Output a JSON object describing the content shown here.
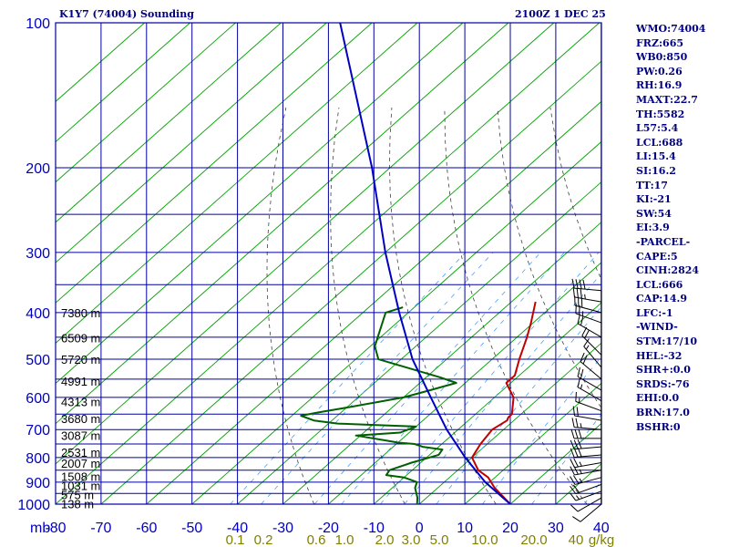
{
  "header": {
    "station": "K1Y7 (74004) Sounding",
    "time": "2100Z  1 DEC 25"
  },
  "stats": [
    "WMO:74004",
    "FRZ:665",
    "WB0:850",
    "PW:0.26",
    "RH:16.9",
    "MAXT:22.7",
    "TH:5582",
    "L57:5.4",
    "LCL:688",
    "LI:15.4",
    "SI:16.2",
    "TT:17",
    "KI:-21",
    "SW:54",
    "EI:3.9",
    "-PARCEL-",
    "CAPE:5",
    "CINH:2824",
    "LCL:666",
    "CAP:14.9",
    "LFC:-1",
    "-WIND-",
    "STM:17/10",
    "HEL:-32",
    "SHR+:0.0",
    "SRDS:-76",
    "EHI:0.0",
    "BRN:17.0",
    "BSHR:0"
  ],
  "colors": {
    "grid": "#0000a0",
    "skewed_isotherm": "#00a000",
    "dry_adiabat": "#404040",
    "mixing_ratio": "#4aa0ff",
    "temperature": "#c00000",
    "dewpoint": "#006000",
    "parcel": "#0000c0",
    "labels": "#0000c0",
    "mixing_ratio_labels": "#808000"
  },
  "chart_data": {
    "type": "line",
    "title": "K1Y7 (74004) Sounding",
    "y_scale": "log-pressure",
    "ylim": [
      1000,
      100
    ],
    "xlim": [
      -80,
      40
    ],
    "pressure_ticks": [
      100,
      200,
      300,
      400,
      500,
      600,
      700,
      800,
      900,
      1000
    ],
    "pressure_tick_labels": [
      "100",
      "200",
      "300",
      "400",
      "500",
      "600",
      "700",
      "800",
      "900",
      "1000"
    ],
    "pressure_unit_label": "mb",
    "temperature_ticks": [
      -80,
      -70,
      -60,
      -50,
      -40,
      -30,
      -20,
      -10,
      0,
      10,
      20,
      30,
      40
    ],
    "temperature_tick_labels": [
      "-80",
      "-70",
      "-60",
      "-50",
      "-40",
      "-30",
      "-20",
      "-10",
      "0",
      "10",
      "20",
      "30",
      "40"
    ],
    "mixing_ratio_labels": [
      "0.1",
      "0.2",
      "0.6",
      "1.0",
      "2.0",
      "3.0",
      "5.0",
      "10.0",
      "20.0",
      "40",
      "g/kg"
    ],
    "height_labels": [
      {
        "p": 400,
        "text": "7380 m"
      },
      {
        "p": 451,
        "text": "6509 m"
      },
      {
        "p": 500,
        "text": "5720 m"
      },
      {
        "p": 555,
        "text": "4991 m"
      },
      {
        "p": 612,
        "text": "4313 m"
      },
      {
        "p": 663,
        "text": "3680 m"
      },
      {
        "p": 720,
        "text": "3087 m"
      },
      {
        "p": 780,
        "text": "2531 m"
      },
      {
        "p": 822,
        "text": "2007 m"
      },
      {
        "p": 875,
        "text": "1508 m"
      },
      {
        "p": 915,
        "text": "1031 m"
      },
      {
        "p": 955,
        "text": "575 m"
      },
      {
        "p": 998,
        "text": "138 m"
      }
    ],
    "series": [
      {
        "key": "temperature",
        "points": [
          {
            "p": 1000,
            "t": 20.0
          },
          {
            "p": 925,
            "t": 12.5
          },
          {
            "p": 880,
            "t": 8.5
          },
          {
            "p": 850,
            "t": 4.5
          },
          {
            "p": 800,
            "t": 0.0
          },
          {
            "p": 750,
            "t": -1.5
          },
          {
            "p": 700,
            "t": -2.5
          },
          {
            "p": 670,
            "t": -1.5
          },
          {
            "p": 660,
            "t": -2.0
          },
          {
            "p": 650,
            "t": -2.0
          },
          {
            "p": 600,
            "t": -5.8
          },
          {
            "p": 560,
            "t": -11.0
          },
          {
            "p": 540,
            "t": -11.0
          },
          {
            "p": 500,
            "t": -14.0
          },
          {
            "p": 450,
            "t": -17.8
          },
          {
            "p": 420,
            "t": -20.5
          },
          {
            "p": 380,
            "t": -24.7
          }
        ]
      },
      {
        "key": "dewpoint",
        "points": [
          {
            "p": 1000,
            "t": -0.5
          },
          {
            "p": 970,
            "t": -2.0
          },
          {
            "p": 925,
            "t": -5.0
          },
          {
            "p": 900,
            "t": -6.0
          },
          {
            "p": 880,
            "t": -10.0
          },
          {
            "p": 870,
            "t": -14.5
          },
          {
            "p": 850,
            "t": -15.0
          },
          {
            "p": 820,
            "t": -12.0
          },
          {
            "p": 790,
            "t": -8.0
          },
          {
            "p": 770,
            "t": -8.5
          },
          {
            "p": 760,
            "t": -13.5
          },
          {
            "p": 750,
            "t": -16.0
          },
          {
            "p": 745,
            "t": -20.0
          },
          {
            "p": 740,
            "t": -22.0
          },
          {
            "p": 720,
            "t": -31.0
          },
          {
            "p": 710,
            "t": -22.0
          },
          {
            "p": 690,
            "t": -20.0
          },
          {
            "p": 680,
            "t": -38.0
          },
          {
            "p": 670,
            "t": -44.0
          },
          {
            "p": 655,
            "t": -48.0
          },
          {
            "p": 645,
            "t": -45.0
          },
          {
            "p": 630,
            "t": -40.0
          },
          {
            "p": 600,
            "t": -30.0
          },
          {
            "p": 580,
            "t": -26.0
          },
          {
            "p": 560,
            "t": -22.0
          },
          {
            "p": 545,
            "t": -27.0
          },
          {
            "p": 500,
            "t": -45.0
          },
          {
            "p": 470,
            "t": -49.0
          },
          {
            "p": 400,
            "t": -55.0
          },
          {
            "p": 390,
            "t": -52.5
          }
        ]
      },
      {
        "key": "parcel",
        "points": [
          {
            "p": 1000,
            "t": 20.0
          },
          {
            "p": 900,
            "t": 9.0
          },
          {
            "p": 800,
            "t": -1.5
          },
          {
            "p": 700,
            "t": -12.5
          },
          {
            "p": 600,
            "t": -24.0
          },
          {
            "p": 500,
            "t": -37.5
          },
          {
            "p": 400,
            "t": -52.0
          },
          {
            "p": 300,
            "t": -70.0
          },
          {
            "p": 200,
            "t": -94.0
          },
          {
            "p": 100,
            "t": -137.0
          }
        ]
      }
    ],
    "wind_barbs": [
      {
        "p": 1000,
        "dir": 230,
        "spd": 10
      },
      {
        "p": 970,
        "dir": 240,
        "spd": 10
      },
      {
        "p": 940,
        "dir": 250,
        "spd": 15
      },
      {
        "p": 910,
        "dir": 250,
        "spd": 20
      },
      {
        "p": 880,
        "dir": 255,
        "spd": 25
      },
      {
        "p": 850,
        "dir": 260,
        "spd": 25
      },
      {
        "p": 820,
        "dir": 260,
        "spd": 25
      },
      {
        "p": 790,
        "dir": 265,
        "spd": 30
      },
      {
        "p": 760,
        "dir": 265,
        "spd": 30
      },
      {
        "p": 730,
        "dir": 270,
        "spd": 30
      },
      {
        "p": 700,
        "dir": 275,
        "spd": 25
      },
      {
        "p": 670,
        "dir": 280,
        "spd": 20
      },
      {
        "p": 640,
        "dir": 290,
        "spd": 15
      },
      {
        "p": 610,
        "dir": 300,
        "spd": 15
      },
      {
        "p": 580,
        "dir": 300,
        "spd": 20
      },
      {
        "p": 550,
        "dir": 310,
        "spd": 20
      },
      {
        "p": 520,
        "dir": 320,
        "spd": 15
      },
      {
        "p": 490,
        "dir": 315,
        "spd": 20
      },
      {
        "p": 450,
        "dir": 300,
        "spd": 20
      },
      {
        "p": 420,
        "dir": 290,
        "spd": 25
      },
      {
        "p": 400,
        "dir": 285,
        "spd": 30
      },
      {
        "p": 380,
        "dir": 280,
        "spd": 35
      },
      {
        "p": 360,
        "dir": 275,
        "spd": 40
      }
    ]
  }
}
